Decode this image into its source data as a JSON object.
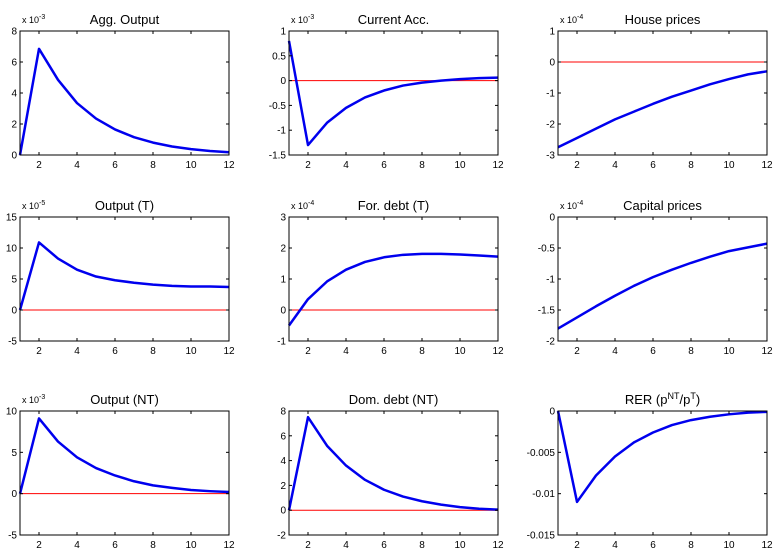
{
  "figure": {
    "colors": {
      "series": "#0000ee",
      "zero_line": "#ff0000",
      "axes": "#000000"
    }
  },
  "chart_data": [
    {
      "type": "line",
      "title": "Agg. Output",
      "title_sup": "",
      "title_end": "",
      "multiplier_exp": "-3",
      "xlim": [
        1,
        12
      ],
      "ylim": [
        0,
        8
      ],
      "xticks": [
        "2",
        "4",
        "6",
        "8",
        "10",
        "12"
      ],
      "yticks": [
        "0",
        "2",
        "4",
        "6",
        "8"
      ],
      "x": [
        1,
        2,
        3,
        4,
        5,
        6,
        7,
        8,
        9,
        10,
        11,
        12
      ],
      "values": [
        0,
        6.85,
        4.85,
        3.35,
        2.35,
        1.65,
        1.15,
        0.8,
        0.55,
        0.38,
        0.26,
        0.18
      ],
      "zero_line": 0
    },
    {
      "type": "line",
      "title": "Current Acc.",
      "title_sup": "",
      "title_end": "",
      "multiplier_exp": "-3",
      "xlim": [
        1,
        12
      ],
      "ylim": [
        -1.5,
        1
      ],
      "xticks": [
        "2",
        "4",
        "6",
        "8",
        "10",
        "12"
      ],
      "yticks": [
        "-1.5",
        "-1",
        "-0.5",
        "0",
        "0.5",
        "1"
      ],
      "x": [
        1,
        2,
        3,
        4,
        5,
        6,
        7,
        8,
        9,
        10,
        11,
        12
      ],
      "values": [
        0.8,
        -1.3,
        -0.85,
        -0.55,
        -0.34,
        -0.2,
        -0.1,
        -0.04,
        0.0,
        0.03,
        0.05,
        0.06
      ],
      "zero_line": 0
    },
    {
      "type": "line",
      "title": "House prices",
      "title_sup": "",
      "title_end": "",
      "multiplier_exp": "-4",
      "xlim": [
        1,
        12
      ],
      "ylim": [
        -3,
        1
      ],
      "xticks": [
        "2",
        "4",
        "6",
        "8",
        "10",
        "12"
      ],
      "yticks": [
        "-3",
        "-2",
        "-1",
        "0",
        "1"
      ],
      "x": [
        1,
        2,
        3,
        4,
        5,
        6,
        7,
        8,
        9,
        10,
        11,
        12
      ],
      "values": [
        -2.75,
        -2.45,
        -2.15,
        -1.85,
        -1.6,
        -1.35,
        -1.12,
        -0.92,
        -0.72,
        -0.55,
        -0.4,
        -0.3
      ],
      "zero_line": 0
    },
    {
      "type": "line",
      "title": "Output (T)",
      "title_sup": "",
      "title_end": "",
      "multiplier_exp": "-5",
      "xlim": [
        1,
        12
      ],
      "ylim": [
        -5,
        15
      ],
      "xticks": [
        "2",
        "4",
        "6",
        "8",
        "10",
        "12"
      ],
      "yticks": [
        "-5",
        "0",
        "5",
        "10",
        "15"
      ],
      "x": [
        1,
        2,
        3,
        4,
        5,
        6,
        7,
        8,
        9,
        10,
        11,
        12
      ],
      "values": [
        0,
        10.9,
        8.3,
        6.5,
        5.4,
        4.8,
        4.4,
        4.1,
        3.9,
        3.8,
        3.8,
        3.7
      ],
      "zero_line": 0
    },
    {
      "type": "line",
      "title": "For. debt (T)",
      "title_sup": "",
      "title_end": "",
      "multiplier_exp": "-4",
      "xlim": [
        1,
        12
      ],
      "ylim": [
        -1,
        3
      ],
      "xticks": [
        "2",
        "4",
        "6",
        "8",
        "10",
        "12"
      ],
      "yticks": [
        "-1",
        "0",
        "1",
        "2",
        "3"
      ],
      "x": [
        1,
        2,
        3,
        4,
        5,
        6,
        7,
        8,
        9,
        10,
        11,
        12
      ],
      "values": [
        -0.5,
        0.35,
        0.92,
        1.3,
        1.55,
        1.7,
        1.78,
        1.81,
        1.81,
        1.79,
        1.76,
        1.72
      ],
      "zero_line": 0
    },
    {
      "type": "line",
      "title": "Capital prices",
      "title_sup": "",
      "title_end": "",
      "multiplier_exp": "-4",
      "xlim": [
        1,
        12
      ],
      "ylim": [
        -2,
        0
      ],
      "xticks": [
        "2",
        "4",
        "6",
        "8",
        "10",
        "12"
      ],
      "yticks": [
        "-2",
        "-1.5",
        "-1",
        "-0.5",
        "0"
      ],
      "x": [
        1,
        2,
        3,
        4,
        5,
        6,
        7,
        8,
        9,
        10,
        11,
        12
      ],
      "values": [
        -1.8,
        -1.62,
        -1.44,
        -1.27,
        -1.11,
        -0.97,
        -0.85,
        -0.74,
        -0.64,
        -0.55,
        -0.49,
        -0.43
      ],
      "zero_line": 0
    },
    {
      "type": "line",
      "title": "Output (NT)",
      "title_sup": "",
      "title_end": "",
      "multiplier_exp": "-3",
      "xlim": [
        1,
        12
      ],
      "ylim": [
        -5,
        10
      ],
      "xticks": [
        "2",
        "4",
        "6",
        "8",
        "10",
        "12"
      ],
      "yticks": [
        "-5",
        "0",
        "5",
        "10"
      ],
      "x": [
        1,
        2,
        3,
        4,
        5,
        6,
        7,
        8,
        9,
        10,
        11,
        12
      ],
      "values": [
        0,
        9.1,
        6.3,
        4.4,
        3.1,
        2.2,
        1.5,
        1.0,
        0.7,
        0.45,
        0.3,
        0.2
      ],
      "zero_line": 0
    },
    {
      "type": "line",
      "title": "Dom. debt (NT)",
      "title_sup": "",
      "title_end": "",
      "multiplier_exp": "",
      "xlim": [
        1,
        12
      ],
      "ylim": [
        -2,
        8
      ],
      "xticks": [
        "2",
        "4",
        "6",
        "8",
        "10",
        "12"
      ],
      "yticks": [
        "-2",
        "0",
        "2",
        "4",
        "6",
        "8"
      ],
      "x": [
        1,
        2,
        3,
        4,
        5,
        6,
        7,
        8,
        9,
        10,
        11,
        12
      ],
      "values": [
        0,
        7.5,
        5.2,
        3.6,
        2.45,
        1.65,
        1.1,
        0.72,
        0.45,
        0.25,
        0.12,
        0.05
      ],
      "zero_line": 0
    },
    {
      "type": "line",
      "title": "RER (p",
      "title_sup": "NT",
      "title_mid": "/p",
      "title_sup2": "T",
      "title_end": ")",
      "multiplier_exp": "",
      "xlim": [
        1,
        12
      ],
      "ylim": [
        -0.015,
        0
      ],
      "xticks": [
        "2",
        "4",
        "6",
        "8",
        "10",
        "12"
      ],
      "yticks": [
        "-0.015",
        "-0.01",
        "-0.005",
        "0"
      ],
      "x": [
        1,
        2,
        3,
        4,
        5,
        6,
        7,
        8,
        9,
        10,
        11,
        12
      ],
      "values": [
        0,
        -0.011,
        -0.0078,
        -0.0055,
        -0.0038,
        -0.0026,
        -0.0017,
        -0.0011,
        -0.0007,
        -0.0004,
        -0.0002,
        -0.0001
      ],
      "zero_line": 0
    }
  ]
}
